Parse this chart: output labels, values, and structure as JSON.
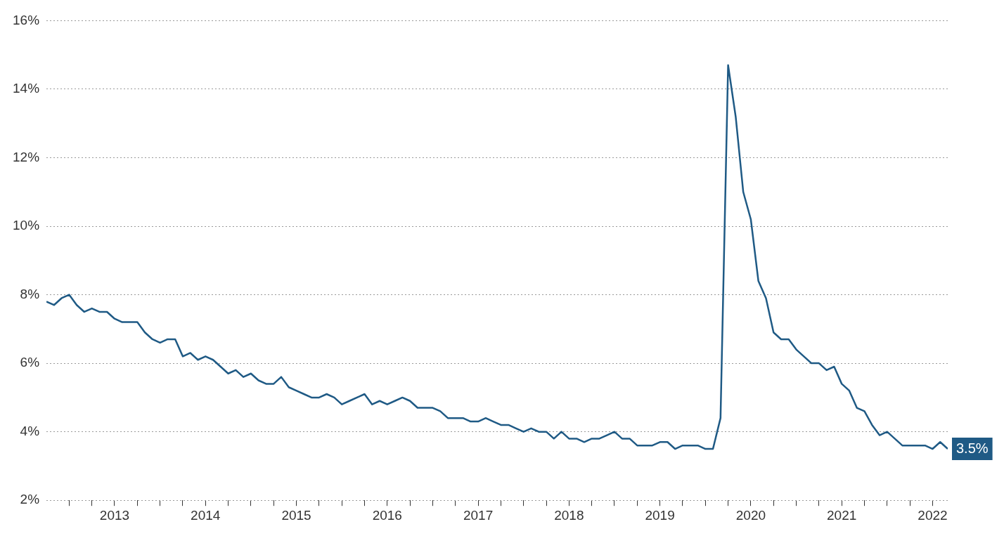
{
  "chart_data": {
    "type": "line",
    "x": [
      "2012-10",
      "2012-11",
      "2012-12",
      "2013-01",
      "2013-02",
      "2013-03",
      "2013-04",
      "2013-05",
      "2013-06",
      "2013-07",
      "2013-08",
      "2013-09",
      "2013-10",
      "2013-11",
      "2013-12",
      "2014-01",
      "2014-02",
      "2014-03",
      "2014-04",
      "2014-05",
      "2014-06",
      "2014-07",
      "2014-08",
      "2014-09",
      "2014-10",
      "2014-11",
      "2014-12",
      "2015-01",
      "2015-02",
      "2015-03",
      "2015-04",
      "2015-05",
      "2015-06",
      "2015-07",
      "2015-08",
      "2015-09",
      "2015-10",
      "2015-11",
      "2015-12",
      "2016-01",
      "2016-02",
      "2016-03",
      "2016-04",
      "2016-05",
      "2016-06",
      "2016-07",
      "2016-08",
      "2016-09",
      "2016-10",
      "2016-11",
      "2016-12",
      "2017-01",
      "2017-02",
      "2017-03",
      "2017-04",
      "2017-05",
      "2017-06",
      "2017-07",
      "2017-08",
      "2017-09",
      "2017-10",
      "2017-11",
      "2017-12",
      "2018-01",
      "2018-02",
      "2018-03",
      "2018-04",
      "2018-05",
      "2018-06",
      "2018-07",
      "2018-08",
      "2018-09",
      "2018-10",
      "2018-11",
      "2018-12",
      "2019-01",
      "2019-02",
      "2019-03",
      "2019-04",
      "2019-05",
      "2019-06",
      "2019-07",
      "2019-08",
      "2019-09",
      "2019-10",
      "2019-11",
      "2019-12",
      "2020-01",
      "2020-02",
      "2020-03",
      "2020-04",
      "2020-05",
      "2020-06",
      "2020-07",
      "2020-08",
      "2020-09",
      "2020-10",
      "2020-11",
      "2020-12",
      "2021-01",
      "2021-02",
      "2021-03",
      "2021-04",
      "2021-05",
      "2021-06",
      "2021-07",
      "2021-08",
      "2021-09",
      "2021-10",
      "2021-11",
      "2021-12",
      "2022-01",
      "2022-02",
      "2022-03",
      "2022-04",
      "2022-05",
      "2022-06",
      "2022-07",
      "2022-08",
      "2022-09"
    ],
    "series": [
      {
        "color": "#1f5a85",
        "values": [
          7.8,
          7.7,
          7.9,
          8.0,
          7.7,
          7.5,
          7.6,
          7.5,
          7.5,
          7.3,
          7.2,
          7.2,
          7.2,
          6.9,
          6.7,
          6.6,
          6.7,
          6.7,
          6.2,
          6.3,
          6.1,
          6.2,
          6.1,
          5.9,
          5.7,
          5.8,
          5.6,
          5.7,
          5.5,
          5.4,
          5.4,
          5.6,
          5.3,
          5.2,
          5.1,
          5.0,
          5.0,
          5.1,
          5.0,
          4.8,
          4.9,
          5.0,
          5.1,
          4.8,
          4.9,
          4.8,
          4.9,
          5.0,
          4.9,
          4.7,
          4.7,
          4.7,
          4.6,
          4.4,
          4.4,
          4.4,
          4.3,
          4.3,
          4.4,
          4.3,
          4.2,
          4.2,
          4.1,
          4.0,
          4.1,
          4.0,
          4.0,
          3.8,
          4.0,
          3.8,
          3.8,
          3.7,
          3.8,
          3.8,
          3.9,
          4.0,
          3.8,
          3.8,
          3.6,
          3.6,
          3.6,
          3.7,
          3.7,
          3.5,
          3.6,
          3.6,
          3.6,
          3.5,
          3.5,
          4.4,
          14.7,
          13.2,
          11.0,
          10.2,
          8.4,
          7.9,
          6.9,
          6.7,
          6.7,
          6.4,
          6.2,
          6.0,
          6.0,
          5.8,
          5.9,
          5.4,
          5.2,
          4.7,
          4.6,
          4.2,
          3.9,
          4.0,
          3.8,
          3.6,
          3.6,
          3.6,
          3.6,
          3.5,
          3.7,
          3.5
        ],
        "value_labels": [
          null,
          null,
          null,
          null,
          null,
          null,
          null,
          null,
          null,
          null,
          null,
          null,
          null,
          null,
          null,
          null,
          null,
          null,
          null,
          null,
          null,
          null,
          null,
          null,
          null,
          null,
          null,
          null,
          null,
          null,
          null,
          null,
          null,
          null,
          null,
          null,
          null,
          null,
          null,
          null,
          null,
          null,
          null,
          null,
          null,
          null,
          null,
          null,
          null,
          null,
          null,
          null,
          null,
          null,
          null,
          null,
          null,
          null,
          null,
          null,
          null,
          null,
          null,
          null,
          null,
          null,
          null,
          null,
          null,
          null,
          null,
          null,
          null,
          null,
          null,
          null,
          null,
          null,
          null,
          null,
          null,
          null,
          null,
          null,
          null,
          null,
          null,
          null,
          null,
          null,
          null,
          null,
          null,
          null,
          null,
          null,
          null,
          null,
          null,
          null,
          null,
          null,
          null,
          null,
          null,
          null,
          null,
          null,
          null,
          null,
          null,
          null,
          null,
          null,
          null,
          null,
          null,
          null,
          null,
          "3.5%"
        ]
      }
    ],
    "xlim": [
      "2012-10",
      "2022-09"
    ],
    "xticks": [
      {
        "value": "2013-01",
        "label": null
      },
      {
        "value": "2013-04",
        "label": null
      },
      {
        "value": "2013-07",
        "label": "2013"
      },
      {
        "value": "2013-10",
        "label": null
      },
      {
        "value": "2014-01",
        "label": null
      },
      {
        "value": "2014-04",
        "label": null
      },
      {
        "value": "2014-07",
        "label": "2014"
      },
      {
        "value": "2014-10",
        "label": null
      },
      {
        "value": "2015-01",
        "label": null
      },
      {
        "value": "2015-04",
        "label": null
      },
      {
        "value": "2015-07",
        "label": "2015"
      },
      {
        "value": "2015-10",
        "label": null
      },
      {
        "value": "2016-01",
        "label": null
      },
      {
        "value": "2016-04",
        "label": null
      },
      {
        "value": "2016-07",
        "label": "2016"
      },
      {
        "value": "2016-10",
        "label": null
      },
      {
        "value": "2017-01",
        "label": null
      },
      {
        "value": "2017-04",
        "label": null
      },
      {
        "value": "2017-07",
        "label": "2017"
      },
      {
        "value": "2017-10",
        "label": null
      },
      {
        "value": "2018-01",
        "label": null
      },
      {
        "value": "2018-04",
        "label": null
      },
      {
        "value": "2018-07",
        "label": "2018"
      },
      {
        "value": "2018-10",
        "label": null
      },
      {
        "value": "2019-01",
        "label": null
      },
      {
        "value": "2019-04",
        "label": null
      },
      {
        "value": "2019-07",
        "label": "2019"
      },
      {
        "value": "2019-10",
        "label": null
      },
      {
        "value": "2020-01",
        "label": null
      },
      {
        "value": "2020-04",
        "label": null
      },
      {
        "value": "2020-07",
        "label": "2020"
      },
      {
        "value": "2020-10",
        "label": null
      },
      {
        "value": "2021-01",
        "label": null
      },
      {
        "value": "2021-04",
        "label": null
      },
      {
        "value": "2021-07",
        "label": "2021"
      },
      {
        "value": "2021-10",
        "label": null
      },
      {
        "value": "2022-01",
        "label": null
      },
      {
        "value": "2022-04",
        "label": null
      },
      {
        "value": "2022-07",
        "label": "2022"
      }
    ],
    "ylim": [
      2,
      16
    ],
    "yticks": [
      {
        "value": 2,
        "label": "2%"
      },
      {
        "value": 4,
        "label": "4%"
      },
      {
        "value": 6,
        "label": "6%"
      },
      {
        "value": 8,
        "label": "8%"
      },
      {
        "value": 10,
        "label": "10%"
      },
      {
        "value": 12,
        "label": "12%"
      },
      {
        "value": 14,
        "label": "14%"
      },
      {
        "value": 16,
        "label": "16%"
      }
    ],
    "grid": "y",
    "marker": "none",
    "line_style": "solid",
    "legend": false
  }
}
